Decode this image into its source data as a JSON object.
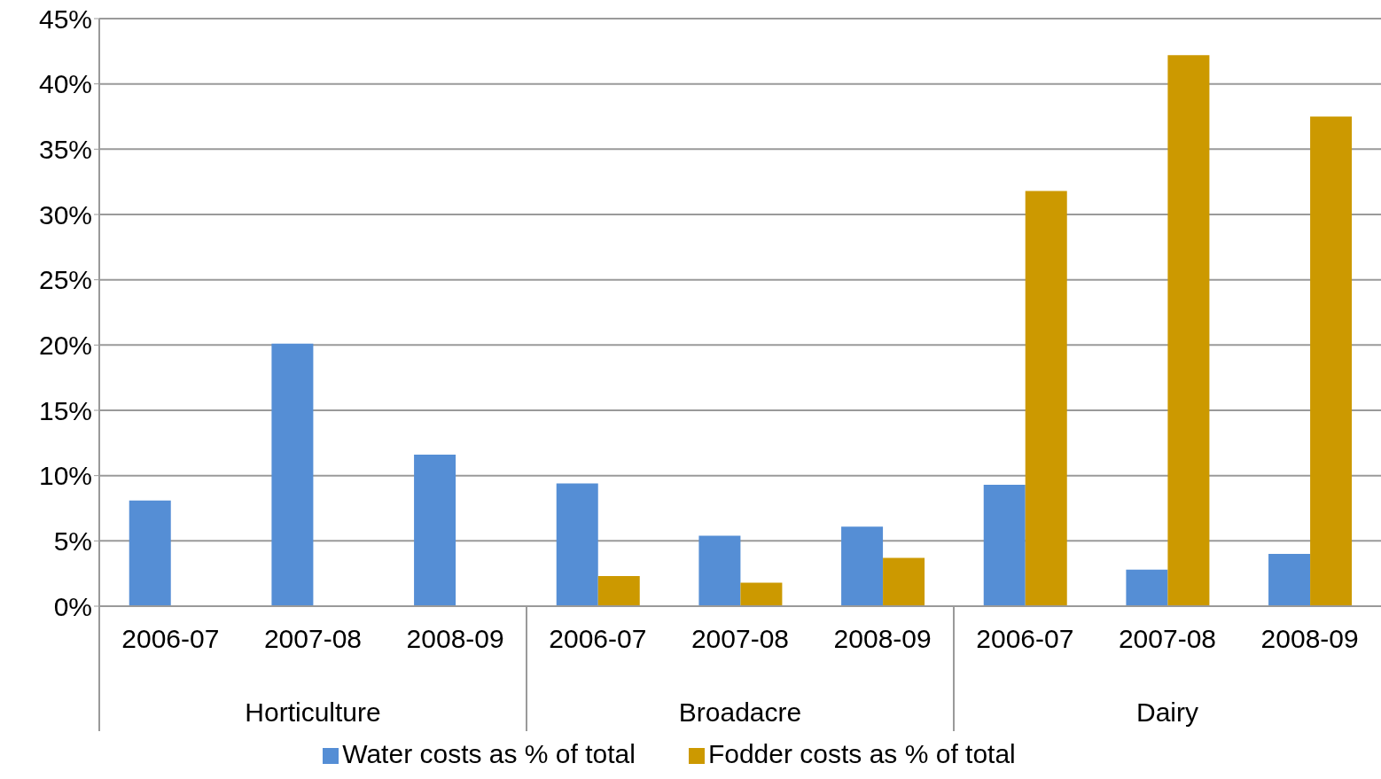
{
  "chart_data": {
    "type": "bar",
    "categories": [
      "2006-07",
      "2007-08",
      "2008-09",
      "2006-07",
      "2007-08",
      "2008-09",
      "2006-07",
      "2007-08",
      "2008-09"
    ],
    "annotations": [
      "Horticulture",
      "Broadacre",
      "Dairy"
    ],
    "series": [
      {
        "name": "Water costs as % of total",
        "color": "#558ed5",
        "values": [
          8.1,
          20.1,
          11.6,
          9.4,
          5.4,
          6.1,
          9.3,
          2.8,
          4.0
        ]
      },
      {
        "name": "Fodder costs as % of total",
        "color": "#cc9900",
        "values": [
          null,
          null,
          null,
          2.3,
          1.8,
          3.7,
          31.8,
          42.2,
          37.5
        ]
      }
    ],
    "ylim": [
      0,
      45
    ],
    "yticks": [
      {
        "value": 0,
        "label": "0%"
      },
      {
        "value": 5,
        "label": "5%"
      },
      {
        "value": 10,
        "label": "10%"
      },
      {
        "value": 15,
        "label": "15%"
      },
      {
        "value": 20,
        "label": "20%"
      },
      {
        "value": 25,
        "label": "25%"
      },
      {
        "value": 30,
        "label": "30%"
      },
      {
        "value": 35,
        "label": "35%"
      },
      {
        "value": 40,
        "label": "40%"
      },
      {
        "value": 45,
        "label": "45%"
      }
    ],
    "grid": "y",
    "legend": "bottom"
  }
}
